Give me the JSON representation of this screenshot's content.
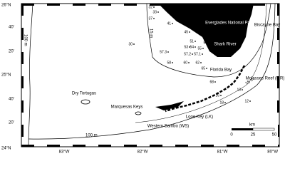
{
  "lat_labels": [
    "26°N",
    "40'",
    "20'",
    "25°N",
    "40'",
    "20'",
    "24°N"
  ],
  "lon_labels": [
    "83°W",
    "82°W",
    "81°W",
    "80°W"
  ],
  "places": {
    "everglades": "Everglades National Park",
    "biscayne": "Biscayne Bay",
    "shark_river": "Shark River",
    "florida_bay": "Florida Bay",
    "molasses": "Molasses Reef (MR)",
    "looe": "Looe Key (LK)",
    "sambo": "Western Sambo (WS)",
    "marquesas": "Marquesas Keys",
    "tortugas": "Dry Tortugas"
  },
  "depth_labels": [
    "100 m",
    "100 m",
    "15 m",
    "15 m"
  ],
  "stations": [
    "32",
    "33",
    "37",
    "41",
    "45",
    "49",
    "51",
    "53",
    "54",
    "55",
    "57",
    "57.3",
    "57.2",
    "57.1",
    "30",
    "58",
    "60",
    "62",
    "65",
    "68",
    "10",
    "12",
    "16",
    "18"
  ],
  "scale": {
    "unit": "km",
    "ticks": [
      0,
      25,
      50
    ]
  }
}
